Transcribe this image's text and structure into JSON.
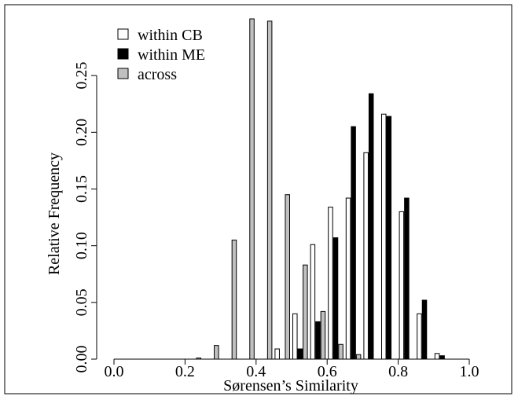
{
  "chart_data": {
    "type": "bar",
    "xlabel": "Sørensen’s Similarity",
    "ylabel": "Relative Frequency",
    "xlim": [
      0.0,
      1.0
    ],
    "ylim": [
      0.0,
      0.3
    ],
    "x_ticks": [
      "0.0",
      "0.2",
      "0.4",
      "0.6",
      "0.8",
      "1.0"
    ],
    "y_ticks": [
      "0.00",
      "0.05",
      "0.10",
      "0.15",
      "0.20",
      "0.25"
    ],
    "bin_width": 0.05,
    "bin_starts": [
      0.0,
      0.05,
      0.1,
      0.15,
      0.2,
      0.25,
      0.3,
      0.35,
      0.4,
      0.45,
      0.5,
      0.55,
      0.6,
      0.65,
      0.7,
      0.75,
      0.8,
      0.85,
      0.9
    ],
    "legend": {
      "position": "top-left"
    },
    "series": [
      {
        "name": "within CB",
        "color": "#ffffff",
        "values": [
          0,
          0,
          0,
          0,
          0,
          0,
          0,
          0,
          0,
          0.009,
          0.04,
          0.101,
          0.134,
          0.142,
          0.182,
          0.216,
          0.13,
          0.04,
          0.005
        ]
      },
      {
        "name": "within ME",
        "color": "#000000",
        "values": [
          0,
          0,
          0,
          0,
          0,
          0,
          0,
          0,
          0,
          0,
          0.009,
          0.033,
          0.107,
          0.205,
          0.234,
          0.214,
          0.142,
          0.052,
          0.003
        ]
      },
      {
        "name": "across",
        "color": "#c0c0c0",
        "values": [
          0,
          0,
          0,
          0,
          0.001,
          0.012,
          0.105,
          0.3,
          0.298,
          0.145,
          0.083,
          0.042,
          0.013,
          0.004,
          0,
          0,
          0,
          0,
          0
        ]
      }
    ]
  }
}
